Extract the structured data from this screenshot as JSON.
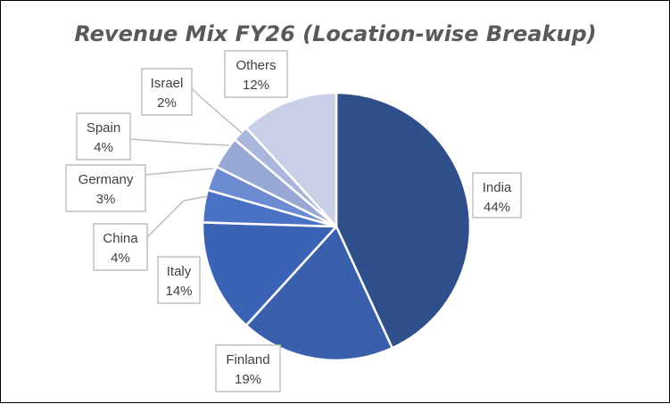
{
  "chart_data": {
    "type": "pie",
    "title": "Revenue Mix FY26 (Location-wise Breakup)",
    "categories": [
      "India",
      "Finland",
      "Italy",
      "China",
      "Germany",
      "Spain",
      "Israel",
      "Others"
    ],
    "values": [
      44,
      19,
      14,
      4,
      3,
      4,
      2,
      12
    ],
    "value_labels": [
      "44%",
      "19%",
      "14%",
      "4%",
      "3%",
      "4%",
      "2%",
      "12%"
    ],
    "colors": [
      "#2f4f8a",
      "#3960ac",
      "#3b63b5",
      "#4a72c4",
      "#6b8bd3",
      "#97a8d4",
      "#a9b7dc",
      "#c8cfe6"
    ],
    "start_angle_deg": 0,
    "direction": "clockwise",
    "data_labels": "callouts with leader lines",
    "legend": "none"
  }
}
